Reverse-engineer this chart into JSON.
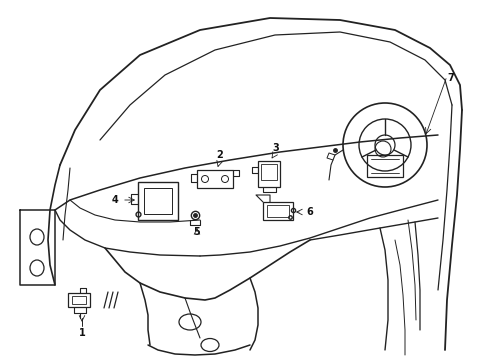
{
  "bg_color": "#ffffff",
  "line_color": "#222222",
  "label_color": "#111111",
  "figsize": [
    4.9,
    3.6
  ],
  "dpi": 100
}
